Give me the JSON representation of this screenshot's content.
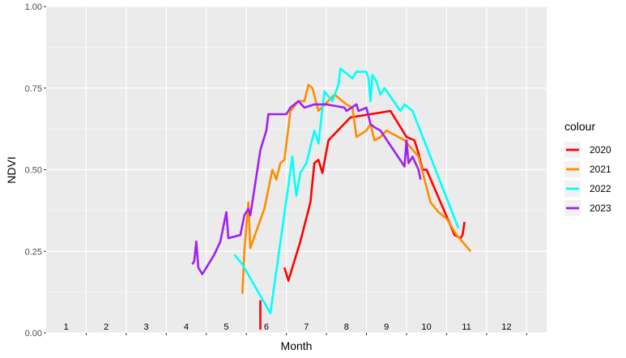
{
  "chart_data": {
    "type": "line",
    "xlabel": "Month",
    "ylabel": "NDVI",
    "xlim": [
      0,
      12.5
    ],
    "ylim": [
      0,
      1
    ],
    "y_ticks": [
      "0.00",
      "0.25",
      "0.50",
      "0.75",
      "1.00"
    ],
    "y_tick_values": [
      0,
      0.25,
      0.5,
      0.75,
      1
    ],
    "month_labels": [
      "1",
      "2",
      "3",
      "4",
      "5",
      "6",
      "7",
      "8",
      "9",
      "10",
      "11",
      "12"
    ],
    "grid": true,
    "background": "#ebebeb",
    "legend": {
      "title": "colour",
      "placement": "right"
    },
    "series": [
      {
        "name": "2020",
        "color": "#ff0000",
        "segments": [
          [
            [
              5.35,
              0.1
            ],
            [
              5.35,
              0.01
            ]
          ],
          [
            [
              5.95,
              0.2
            ],
            [
              6.05,
              0.16
            ],
            [
              6.35,
              0.28
            ],
            [
              6.6,
              0.4
            ],
            [
              6.7,
              0.52
            ],
            [
              6.8,
              0.53
            ],
            [
              6.9,
              0.49
            ],
            [
              7.05,
              0.59
            ],
            [
              7.6,
              0.66
            ],
            [
              8.6,
              0.68
            ],
            [
              9.0,
              0.6
            ],
            [
              9.2,
              0.59
            ],
            [
              9.3,
              0.55
            ],
            [
              9.4,
              0.5
            ],
            [
              9.5,
              0.5
            ],
            [
              10.2,
              0.3
            ],
            [
              10.35,
              0.29
            ],
            [
              10.4,
              0.3
            ],
            [
              10.45,
              0.34
            ]
          ]
        ]
      },
      {
        "name": "2021",
        "color": "#ff8c00",
        "segments": [
          [
            [
              4.9,
              0.12
            ],
            [
              4.95,
              0.25
            ],
            [
              5.05,
              0.4
            ],
            [
              5.1,
              0.26
            ],
            [
              5.45,
              0.38
            ],
            [
              5.65,
              0.5
            ],
            [
              5.75,
              0.47
            ],
            [
              5.85,
              0.52
            ],
            [
              5.95,
              0.53
            ],
            [
              6.1,
              0.68
            ],
            [
              6.3,
              0.71
            ],
            [
              6.45,
              0.71
            ],
            [
              6.55,
              0.76
            ],
            [
              6.65,
              0.75
            ],
            [
              6.8,
              0.68
            ],
            [
              7.2,
              0.73
            ],
            [
              7.5,
              0.7
            ],
            [
              7.65,
              0.69
            ],
            [
              7.75,
              0.6
            ],
            [
              8.0,
              0.62
            ],
            [
              8.1,
              0.64
            ],
            [
              8.2,
              0.59
            ],
            [
              8.35,
              0.6
            ],
            [
              8.5,
              0.62
            ],
            [
              8.95,
              0.59
            ],
            [
              9.3,
              0.54
            ],
            [
              9.6,
              0.4
            ],
            [
              9.8,
              0.37
            ],
            [
              10.0,
              0.35
            ],
            [
              10.25,
              0.3
            ],
            [
              10.6,
              0.25
            ]
          ]
        ]
      },
      {
        "name": "2022",
        "color": "#00ffff",
        "segments": [
          [
            [
              4.7,
              0.24
            ],
            [
              4.9,
              0.21
            ],
            [
              5.6,
              0.06
            ],
            [
              6.15,
              0.54
            ],
            [
              6.2,
              0.47
            ],
            [
              6.25,
              0.42
            ],
            [
              6.35,
              0.49
            ],
            [
              6.5,
              0.52
            ],
            [
              6.7,
              0.62
            ],
            [
              6.8,
              0.58
            ],
            [
              6.95,
              0.74
            ],
            [
              7.15,
              0.71
            ],
            [
              7.3,
              0.76
            ],
            [
              7.35,
              0.81
            ],
            [
              7.55,
              0.79
            ],
            [
              7.65,
              0.78
            ],
            [
              7.75,
              0.8
            ],
            [
              8.0,
              0.8
            ],
            [
              8.05,
              0.78
            ],
            [
              8.1,
              0.71
            ],
            [
              8.15,
              0.79
            ],
            [
              8.25,
              0.77
            ],
            [
              8.35,
              0.73
            ],
            [
              8.45,
              0.75
            ],
            [
              8.85,
              0.68
            ],
            [
              8.95,
              0.7
            ],
            [
              9.15,
              0.68
            ],
            [
              10.3,
              0.32
            ]
          ]
        ]
      },
      {
        "name": "2023",
        "color": "#a020f0",
        "segments": [
          [
            [
              3.65,
              0.21
            ],
            [
              3.7,
              0.22
            ],
            [
              3.75,
              0.28
            ],
            [
              3.8,
              0.2
            ],
            [
              3.9,
              0.18
            ],
            [
              4.0,
              0.2
            ],
            [
              4.2,
              0.24
            ],
            [
              4.35,
              0.28
            ],
            [
              4.45,
              0.34
            ],
            [
              4.5,
              0.37
            ],
            [
              4.55,
              0.29
            ],
            [
              4.85,
              0.3
            ],
            [
              4.95,
              0.36
            ],
            [
              5.0,
              0.37
            ],
            [
              5.05,
              0.38
            ],
            [
              5.1,
              0.36
            ],
            [
              5.2,
              0.44
            ],
            [
              5.35,
              0.56
            ],
            [
              5.5,
              0.62
            ],
            [
              5.55,
              0.67
            ],
            [
              6.0,
              0.67
            ],
            [
              6.1,
              0.69
            ],
            [
              6.3,
              0.71
            ],
            [
              6.45,
              0.69
            ],
            [
              6.7,
              0.7
            ],
            [
              7.0,
              0.7
            ],
            [
              7.45,
              0.69
            ],
            [
              7.5,
              0.68
            ],
            [
              7.75,
              0.7
            ],
            [
              7.8,
              0.68
            ],
            [
              8.0,
              0.69
            ],
            [
              8.1,
              0.64
            ],
            [
              8.2,
              0.63
            ],
            [
              8.35,
              0.62
            ],
            [
              8.95,
              0.51
            ],
            [
              9.0,
              0.59
            ],
            [
              9.05,
              0.52
            ],
            [
              9.15,
              0.54
            ],
            [
              9.3,
              0.5
            ],
            [
              9.35,
              0.47
            ]
          ]
        ]
      }
    ]
  }
}
